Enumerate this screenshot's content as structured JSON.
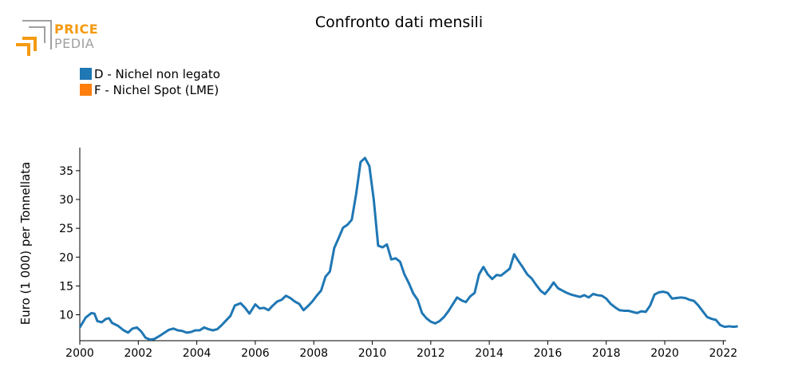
{
  "logo": {
    "line1": "PRICE",
    "line2": "PEDIA",
    "color_orange": "#f59a10",
    "color_gray": "#a0a0a0"
  },
  "chart_data": {
    "type": "line",
    "title": "Confronto dati mensili",
    "ylabel": "Euro (1 000) per Tonnellata",
    "xlabel": "",
    "xlim": [
      2000,
      2022.1
    ],
    "ylim": [
      5.5,
      39
    ],
    "x_ticks": [
      2000,
      2002,
      2004,
      2006,
      2008,
      2010,
      2012,
      2014,
      2016,
      2018,
      2020,
      2022
    ],
    "y_ticks": [
      10,
      15,
      20,
      25,
      30,
      35
    ],
    "grid": false,
    "legend_position": "top-left",
    "series": [
      {
        "name": "D - Nichel non legato",
        "color": "#1f77b4",
        "points": [
          [
            2000.0,
            7.8
          ],
          [
            2000.2,
            9.5
          ],
          [
            2000.4,
            10.3
          ],
          [
            2000.5,
            10.2
          ],
          [
            2000.6,
            8.9
          ],
          [
            2000.75,
            8.7
          ],
          [
            2000.9,
            9.3
          ],
          [
            2001.0,
            9.4
          ],
          [
            2001.1,
            8.6
          ],
          [
            2001.3,
            8.1
          ],
          [
            2001.5,
            7.3
          ],
          [
            2001.65,
            6.9
          ],
          [
            2001.8,
            7.6
          ],
          [
            2001.95,
            7.8
          ],
          [
            2002.1,
            7.1
          ],
          [
            2002.25,
            6.0
          ],
          [
            2002.4,
            5.7
          ],
          [
            2002.55,
            5.8
          ],
          [
            2002.75,
            6.4
          ],
          [
            2002.9,
            6.9
          ],
          [
            2003.05,
            7.4
          ],
          [
            2003.2,
            7.6
          ],
          [
            2003.35,
            7.3
          ],
          [
            2003.5,
            7.2
          ],
          [
            2003.65,
            6.9
          ],
          [
            2003.8,
            7.0
          ],
          [
            2003.95,
            7.3
          ],
          [
            2004.1,
            7.3
          ],
          [
            2004.25,
            7.8
          ],
          [
            2004.4,
            7.5
          ],
          [
            2004.55,
            7.3
          ],
          [
            2004.7,
            7.5
          ],
          [
            2004.85,
            8.2
          ],
          [
            2005.0,
            9.0
          ],
          [
            2005.15,
            9.8
          ],
          [
            2005.3,
            11.6
          ],
          [
            2005.5,
            12.0
          ],
          [
            2005.65,
            11.2
          ],
          [
            2005.8,
            10.2
          ],
          [
            2006.0,
            11.8
          ],
          [
            2006.15,
            11.1
          ],
          [
            2006.3,
            11.2
          ],
          [
            2006.45,
            10.8
          ],
          [
            2006.6,
            11.6
          ],
          [
            2006.75,
            12.3
          ],
          [
            2006.9,
            12.6
          ],
          [
            2007.05,
            13.3
          ],
          [
            2007.2,
            12.9
          ],
          [
            2007.35,
            12.3
          ],
          [
            2007.5,
            11.9
          ],
          [
            2007.65,
            10.8
          ],
          [
            2007.8,
            11.5
          ],
          [
            2007.95,
            12.3
          ],
          [
            2008.1,
            13.3
          ],
          [
            2008.25,
            14.2
          ],
          [
            2008.4,
            16.6
          ],
          [
            2008.55,
            17.5
          ],
          [
            2008.7,
            21.6
          ],
          [
            2008.85,
            23.3
          ],
          [
            2009.0,
            25.1
          ],
          [
            2009.15,
            25.6
          ],
          [
            2009.3,
            26.5
          ],
          [
            2009.45,
            31.0
          ],
          [
            2009.6,
            36.5
          ],
          [
            2009.75,
            37.2
          ],
          [
            2009.9,
            35.8
          ],
          [
            2010.05,
            30.0
          ],
          [
            2010.2,
            22.0
          ],
          [
            2010.35,
            21.7
          ],
          [
            2010.5,
            22.2
          ],
          [
            2010.65,
            19.6
          ],
          [
            2010.8,
            19.8
          ],
          [
            2010.95,
            19.2
          ],
          [
            2011.1,
            17.0
          ],
          [
            2011.25,
            15.5
          ],
          [
            2011.4,
            13.7
          ],
          [
            2011.55,
            12.6
          ],
          [
            2011.7,
            10.3
          ],
          [
            2011.85,
            9.4
          ],
          [
            2012.0,
            8.8
          ],
          [
            2012.15,
            8.5
          ],
          [
            2012.3,
            8.9
          ],
          [
            2012.45,
            9.6
          ],
          [
            2012.6,
            10.6
          ],
          [
            2012.75,
            11.8
          ],
          [
            2012.9,
            13.0
          ],
          [
            2013.05,
            12.5
          ],
          [
            2013.2,
            12.2
          ],
          [
            2013.35,
            13.2
          ],
          [
            2013.5,
            13.8
          ],
          [
            2013.65,
            17.0
          ],
          [
            2013.8,
            18.3
          ],
          [
            2013.95,
            17.0
          ],
          [
            2014.1,
            16.2
          ],
          [
            2014.25,
            16.9
          ],
          [
            2014.4,
            16.8
          ],
          [
            2014.55,
            17.4
          ],
          [
            2014.7,
            18.0
          ],
          [
            2014.85,
            20.5
          ],
          [
            2015.0,
            19.3
          ],
          [
            2015.15,
            18.2
          ],
          [
            2015.3,
            17.0
          ],
          [
            2015.45,
            16.3
          ],
          [
            2015.6,
            15.2
          ],
          [
            2015.75,
            14.2
          ],
          [
            2015.9,
            13.6
          ],
          [
            2016.05,
            14.5
          ],
          [
            2016.2,
            15.6
          ],
          [
            2016.35,
            14.6
          ],
          [
            2016.5,
            14.2
          ],
          [
            2016.65,
            13.8
          ],
          [
            2016.8,
            13.5
          ],
          [
            2016.95,
            13.3
          ],
          [
            2017.1,
            13.1
          ],
          [
            2017.25,
            13.4
          ],
          [
            2017.4,
            13.0
          ],
          [
            2017.55,
            13.6
          ],
          [
            2017.7,
            13.4
          ],
          [
            2017.85,
            13.3
          ],
          [
            2018.0,
            12.8
          ],
          [
            2018.15,
            11.9
          ],
          [
            2018.3,
            11.3
          ],
          [
            2018.45,
            10.8
          ],
          [
            2018.6,
            10.7
          ],
          [
            2018.75,
            10.7
          ],
          [
            2018.9,
            10.5
          ],
          [
            2019.05,
            10.3
          ],
          [
            2019.2,
            10.6
          ],
          [
            2019.35,
            10.5
          ],
          [
            2019.5,
            11.6
          ],
          [
            2019.65,
            13.5
          ],
          [
            2019.8,
            13.9
          ],
          [
            2019.95,
            14.0
          ],
          [
            2020.1,
            13.8
          ],
          [
            2020.25,
            12.8
          ],
          [
            2020.4,
            12.9
          ],
          [
            2020.55,
            13.0
          ],
          [
            2020.7,
            12.9
          ],
          [
            2020.85,
            12.6
          ],
          [
            2021.0,
            12.4
          ],
          [
            2021.15,
            11.6
          ],
          [
            2021.3,
            10.6
          ],
          [
            2021.45,
            9.6
          ],
          [
            2021.6,
            9.3
          ],
          [
            2021.75,
            9.1
          ],
          [
            2021.9,
            8.2
          ],
          [
            2022.05,
            7.9
          ],
          [
            2022.2,
            8.0
          ],
          [
            2022.35,
            7.9
          ],
          [
            2022.5,
            8.0
          ]
        ]
      },
      {
        "name": "F - Nichel Spot (LME)",
        "color": "#ff7f0e",
        "points": []
      }
    ]
  }
}
